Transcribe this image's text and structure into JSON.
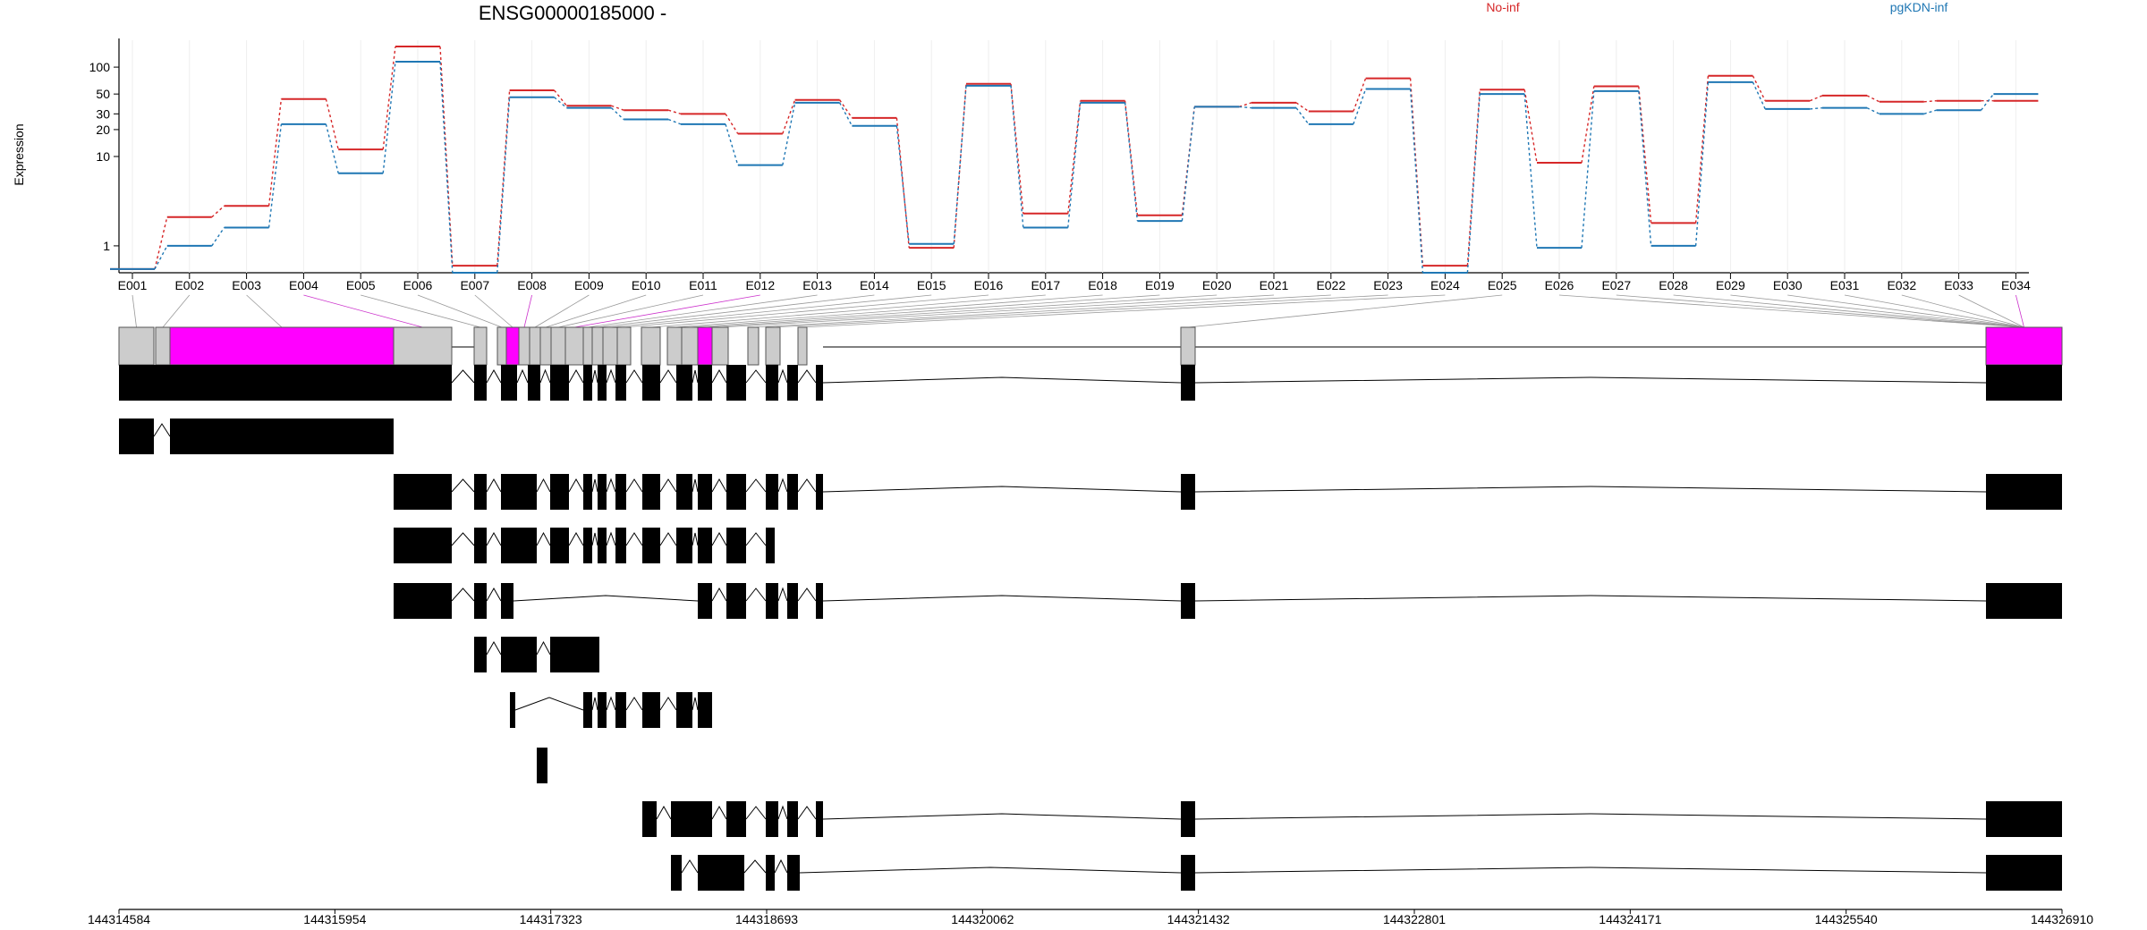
{
  "chart_data": {
    "type": "line",
    "title": "ENSG00000185000 -",
    "xlabel": "",
    "ylabel": "Expression",
    "y_scale": "log",
    "ylim": [
      0.5,
      200
    ],
    "y_ticks": [
      1,
      10,
      20,
      30,
      50,
      100
    ],
    "grid": true,
    "legend_position": "top-right",
    "categories": [
      "E001",
      "E002",
      "E003",
      "E004",
      "E005",
      "E006",
      "E007",
      "E008",
      "E009",
      "E010",
      "E011",
      "E012",
      "E013",
      "E014",
      "E015",
      "E016",
      "E017",
      "E018",
      "E019",
      "E020",
      "E021",
      "E022",
      "E023",
      "E024",
      "E025",
      "E026",
      "E027",
      "E028",
      "E029",
      "E030",
      "E031",
      "E032",
      "E033",
      "E034"
    ],
    "series": [
      {
        "name": "No-inf",
        "color": "#d62728",
        "values": [
          0.55,
          2.1,
          2.8,
          44,
          12,
          170,
          0.6,
          55,
          37,
          33,
          30,
          18,
          43,
          27,
          0.95,
          65,
          2.3,
          42,
          2.2,
          36,
          40,
          32,
          75,
          0.6,
          56,
          8.5,
          61,
          1.8,
          80,
          42,
          48,
          41,
          42,
          42
        ]
      },
      {
        "name": "pgKDN-inf",
        "color": "#1f77b4",
        "values": [
          0.55,
          1.0,
          1.6,
          23,
          6.5,
          115,
          0.5,
          46,
          35,
          26,
          23,
          8,
          40,
          22,
          1.05,
          62,
          1.6,
          40,
          1.9,
          36,
          35,
          23,
          57,
          0.5,
          50,
          0.95,
          54,
          1.0,
          68,
          34,
          35,
          30,
          33,
          50
        ]
      }
    ],
    "highlighted_exons": [
      "E004",
      "E008",
      "E012",
      "E034"
    ],
    "colors": {
      "highlight": "#ff00ff",
      "exon_gray": "#cccccc",
      "transcript": "#000000"
    },
    "genomic_axis": {
      "range": [
        144314584,
        144326910
      ],
      "ticks": [
        "144314584",
        "144315954",
        "144317323",
        "144318693",
        "144320062",
        "144321432",
        "144322801",
        "144324171",
        "144325540",
        "144326910"
      ]
    }
  }
}
